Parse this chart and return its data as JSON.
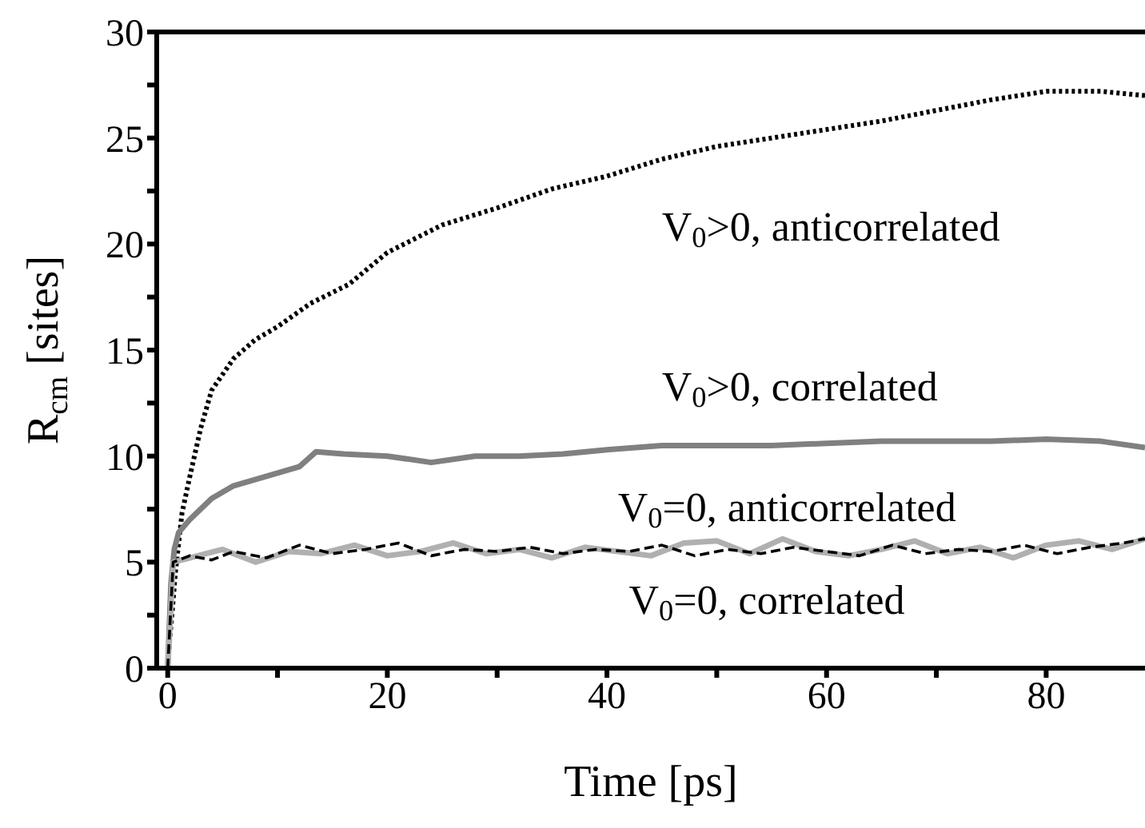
{
  "chart_data": {
    "type": "line",
    "xlabel": "Time [ps]",
    "ylabel": "R$_{cm}$ [sites]",
    "xlim": [
      -1,
      89
    ],
    "ylim": [
      0,
      30
    ],
    "xticks": [
      0,
      {
        "value": 10,
        "label": null
      },
      20,
      {
        "value": 30,
        "label": null
      },
      40,
      {
        "value": 50,
        "label": null
      },
      60,
      {
        "value": 70,
        "label": null
      },
      80
    ],
    "yticks": [
      0,
      {
        "value": 2.5,
        "label": null
      },
      5,
      {
        "value": 7.5,
        "label": null
      },
      10,
      {
        "value": 12.5,
        "label": null
      },
      15,
      {
        "value": 17.5,
        "label": null
      },
      20,
      {
        "value": 22.5,
        "label": null
      },
      25,
      {
        "value": 27.5,
        "label": null
      },
      30
    ],
    "legend": false,
    "marker": "none",
    "series": [
      {
        "name": "V$_{0}$>0, anticorrelated",
        "color": "#000000",
        "line_style": "dotted",
        "x": [
          0,
          0.2,
          0.4,
          0.7,
          1.3,
          2,
          3,
          4,
          6,
          8,
          10,
          13,
          16.5,
          20,
          25,
          30,
          35,
          40,
          45,
          50,
          55,
          60,
          65,
          70,
          75,
          80,
          85,
          89
        ],
        "values": [
          0,
          1.5,
          2.6,
          4.5,
          7.3,
          9,
          11.3,
          13.1,
          14.6,
          15.5,
          16.1,
          17.2,
          18.1,
          19.6,
          20.9,
          21.7,
          22.6,
          23.2,
          24,
          24.6,
          25,
          25.4,
          25.8,
          26.3,
          26.8,
          27.2,
          27.2,
          27
        ]
      },
      {
        "name": "V$_{0}$>0, correlated",
        "color": "#808080",
        "line_style": "solid",
        "x": [
          0,
          0.3,
          0.6,
          1,
          2,
          4,
          6,
          8,
          10,
          12,
          13.5,
          16,
          20,
          24,
          28,
          32,
          36,
          40,
          45,
          50,
          55,
          60,
          65,
          70,
          75,
          80,
          85,
          89
        ],
        "values": [
          0,
          4,
          5.6,
          6.4,
          7,
          8,
          8.6,
          8.9,
          9.2,
          9.5,
          10.2,
          10.1,
          10,
          9.7,
          10,
          10,
          10.1,
          10.3,
          10.5,
          10.5,
          10.5,
          10.6,
          10.7,
          10.7,
          10.7,
          10.8,
          10.7,
          10.4
        ]
      },
      {
        "name": "V$_{0}$=0, anticorrelated",
        "color": "#b0b0b0",
        "line_style": "solid",
        "x": [
          0,
          0.5,
          2,
          5,
          8,
          11,
          14,
          17,
          20,
          23,
          26,
          29,
          32,
          35,
          38,
          41,
          44,
          47,
          50,
          53,
          56,
          59,
          62,
          65,
          68,
          71,
          74,
          77,
          80,
          83,
          86,
          89
        ],
        "values": [
          0,
          5,
          5.2,
          5.6,
          5,
          5.5,
          5.4,
          5.8,
          5.3,
          5.5,
          5.9,
          5.4,
          5.6,
          5.2,
          5.7,
          5.5,
          5.3,
          5.9,
          6,
          5.4,
          6.1,
          5.5,
          5.3,
          5.6,
          6,
          5.4,
          5.7,
          5.2,
          5.8,
          6,
          5.6,
          6.1
        ]
      },
      {
        "name": "V$_{0}$=0, correlated",
        "color": "#000000",
        "line_style": "dashed",
        "x": [
          0,
          0.5,
          2,
          4,
          6,
          9,
          12,
          15,
          18,
          21,
          24,
          27,
          30,
          33,
          36,
          39,
          42,
          45,
          48,
          51,
          54,
          57,
          60,
          63,
          66,
          69,
          72,
          75,
          78,
          81,
          84,
          87,
          89
        ],
        "values": [
          0,
          5,
          5.3,
          5.1,
          5.5,
          5.2,
          5.8,
          5.4,
          5.6,
          5.9,
          5.3,
          5.6,
          5.5,
          5.7,
          5.4,
          5.6,
          5.5,
          5.8,
          5.3,
          5.6,
          5.4,
          5.7,
          5.5,
          5.3,
          5.8,
          5.4,
          5.6,
          5.5,
          5.8,
          5.4,
          5.7,
          5.9,
          6.1
        ]
      }
    ]
  }
}
